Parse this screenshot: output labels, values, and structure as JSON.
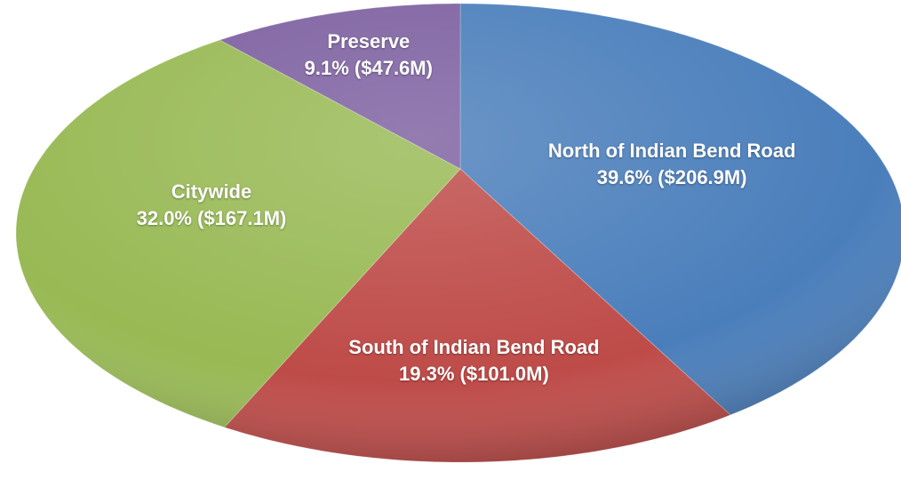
{
  "chart_data": {
    "type": "pie",
    "categories": [
      "North of Indian Bend Road",
      "South of Indian Bend Road",
      "Citywide",
      "Preserve"
    ],
    "values": [
      39.6,
      19.3,
      32.0,
      9.1
    ],
    "value_labels": [
      "39.6% ($206.9M)",
      "19.3% ($101.0M)",
      "32.0% ($167.1M)",
      "9.1% ($47.6M)"
    ],
    "colors": [
      "#4a7ebb",
      "#be4b48",
      "#98b954",
      "#7d60a0"
    ]
  }
}
